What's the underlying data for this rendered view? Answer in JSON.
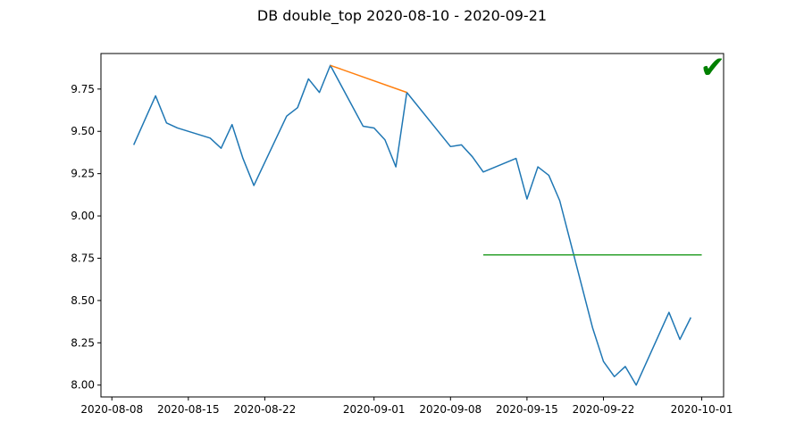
{
  "chart_data": {
    "type": "line",
    "title": "DB double_top 2020-08-10 - 2020-09-21",
    "xlabel": "",
    "ylabel": "",
    "x_type": "date",
    "xlim": [
      "2020-08-07",
      "2020-10-03"
    ],
    "ylim": [
      7.93,
      9.96
    ],
    "x_ticks": [
      "2020-08-08",
      "2020-08-15",
      "2020-08-22",
      "2020-09-01",
      "2020-09-08",
      "2020-09-15",
      "2020-09-22",
      "2020-10-01"
    ],
    "y_ticks": [
      "8.00",
      "8.25",
      "8.50",
      "8.75",
      "9.00",
      "9.25",
      "9.50",
      "9.75"
    ],
    "grid": false,
    "legend": "none",
    "series": [
      {
        "color": "#1f77b4",
        "points": [
          [
            "2020-08-10",
            9.42
          ],
          [
            "2020-08-12",
            9.71
          ],
          [
            "2020-08-13",
            9.55
          ],
          [
            "2020-08-14",
            9.52
          ],
          [
            "2020-08-17",
            9.46
          ],
          [
            "2020-08-18",
            9.4
          ],
          [
            "2020-08-19",
            9.54
          ],
          [
            "2020-08-20",
            9.34
          ],
          [
            "2020-08-21",
            9.18
          ],
          [
            "2020-08-24",
            9.59
          ],
          [
            "2020-08-25",
            9.64
          ],
          [
            "2020-08-26",
            9.81
          ],
          [
            "2020-08-27",
            9.73
          ],
          [
            "2020-08-28",
            9.89
          ],
          [
            "2020-08-31",
            9.53
          ],
          [
            "2020-09-01",
            9.52
          ],
          [
            "2020-09-02",
            9.45
          ],
          [
            "2020-09-03",
            9.29
          ],
          [
            "2020-09-04",
            9.73
          ],
          [
            "2020-09-08",
            9.41
          ],
          [
            "2020-09-09",
            9.42
          ],
          [
            "2020-09-10",
            9.35
          ],
          [
            "2020-09-11",
            9.26
          ],
          [
            "2020-09-14",
            9.34
          ],
          [
            "2020-09-15",
            9.1
          ],
          [
            "2020-09-16",
            9.29
          ],
          [
            "2020-09-17",
            9.24
          ],
          [
            "2020-09-18",
            9.09
          ],
          [
            "2020-09-21",
            8.34
          ],
          [
            "2020-09-22",
            8.14
          ],
          [
            "2020-09-23",
            8.05
          ],
          [
            "2020-09-24",
            8.11
          ],
          [
            "2020-09-25",
            8.0
          ],
          [
            "2020-09-28",
            8.43
          ],
          [
            "2020-09-29",
            8.27
          ],
          [
            "2020-09-30",
            8.4
          ]
        ]
      },
      {
        "color": "#ff7f0e",
        "points": [
          [
            "2020-08-28",
            9.89
          ],
          [
            "2020-09-04",
            9.73
          ]
        ]
      },
      {
        "color": "#2ca02c",
        "points": [
          [
            "2020-09-11",
            8.77
          ],
          [
            "2020-10-01",
            8.77
          ]
        ]
      }
    ],
    "marker": {
      "symbol": "✔",
      "color": "#008000",
      "at": [
        "2020-10-02",
        9.88
      ]
    }
  }
}
